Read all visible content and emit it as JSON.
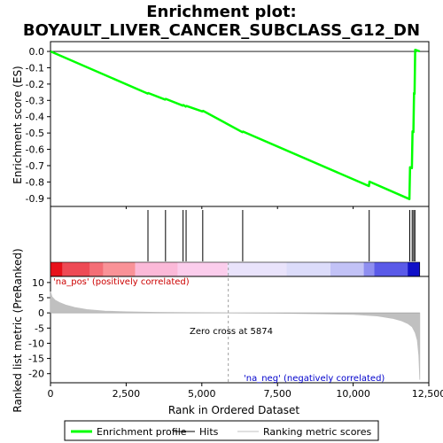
{
  "chart_data": {
    "type": "line",
    "title_line1": "Enrichment plot:",
    "title_line2": "BOYAULT_LIVER_CANCER_SUBCLASS_G12_DN",
    "es_panel": {
      "ylabel": "Enrichment score (ES)",
      "ylim": [
        -0.95,
        0.06
      ],
      "yticks": [
        0.0,
        -0.1,
        -0.2,
        -0.3,
        -0.4,
        -0.5,
        -0.6,
        -0.7,
        -0.8,
        -0.9
      ],
      "ytick_labels": [
        "0.0",
        "-0.1",
        "-0.2",
        "-0.3",
        "-0.4",
        "-0.5",
        "-0.6",
        "-0.7",
        "-0.8",
        "-0.9"
      ],
      "series": [
        {
          "name": "Enrichment profile",
          "color": "#00ff00",
          "x": [
            0,
            3210,
            3230,
            3790,
            3810,
            4370,
            4390,
            4470,
            4490,
            5020,
            5040,
            6340,
            6360,
            10520,
            10540,
            11860,
            11880,
            11940,
            11960,
            11990,
            12010,
            12030,
            12050,
            12200
          ],
          "y": [
            0.0,
            -0.258,
            -0.255,
            -0.295,
            -0.291,
            -0.332,
            -0.328,
            -0.338,
            -0.334,
            -0.368,
            -0.364,
            -0.495,
            -0.491,
            -0.825,
            -0.798,
            -0.905,
            -0.71,
            -0.715,
            -0.49,
            -0.495,
            -0.255,
            -0.26,
            0.01,
            0.0
          ]
        }
      ]
    },
    "hits": {
      "name": "Hits",
      "positions": [
        3220,
        3800,
        4380,
        4480,
        5030,
        6350,
        10530,
        11870,
        11950,
        12000,
        12040
      ]
    },
    "colorbar": {
      "segments": [
        {
          "x0": 0,
          "x1": 400,
          "color": "#e8101a"
        },
        {
          "x0": 400,
          "x1": 1300,
          "color": "#ee4a55"
        },
        {
          "x0": 1300,
          "x1": 1750,
          "color": "#f46e76"
        },
        {
          "x0": 1750,
          "x1": 2800,
          "color": "#f99297"
        },
        {
          "x0": 2800,
          "x1": 4200,
          "color": "#fbb9d8"
        },
        {
          "x0": 4200,
          "x1": 5850,
          "color": "#fbcdec"
        },
        {
          "x0": 5850,
          "x1": 7800,
          "color": "#e9e3fb"
        },
        {
          "x0": 7800,
          "x1": 9250,
          "color": "#dcdcfa"
        },
        {
          "x0": 9250,
          "x1": 10350,
          "color": "#c2c2f6"
        },
        {
          "x0": 10350,
          "x1": 10700,
          "color": "#8e8ef0"
        },
        {
          "x0": 10700,
          "x1": 11800,
          "color": "#5a5ae8"
        },
        {
          "x0": 11800,
          "x1": 12200,
          "color": "#1010c8"
        }
      ]
    },
    "ranked_panel": {
      "ylabel": "Ranked list metric (PreRanked)",
      "ylim": [
        -23,
        12
      ],
      "yticks": [
        10,
        5,
        0,
        -5,
        -10,
        -15,
        -20
      ],
      "ytick_labels": [
        "10",
        "5",
        "0",
        "-5",
        "-10",
        "-15",
        "-20"
      ],
      "series": [
        {
          "name": "Ranking metric scores",
          "color": "#c0c0c0",
          "x": [
            0,
            50,
            150,
            300,
            500,
            800,
            1200,
            1800,
            2500,
            3500,
            4500,
            5874,
            7500,
            9000,
            10000,
            10800,
            11300,
            11600,
            11800,
            11950,
            12050,
            12120,
            12170,
            12200
          ],
          "y": [
            7.0,
            5.3,
            4.2,
            3.4,
            2.6,
            1.8,
            1.1,
            0.6,
            0.35,
            0.2,
            0.1,
            0.0,
            -0.1,
            -0.3,
            -0.5,
            -1.0,
            -1.8,
            -2.6,
            -3.5,
            -4.6,
            -6.5,
            -9.0,
            -14.0,
            -22.0
          ]
        }
      ],
      "zero_cross_label": "Zero cross at 5874",
      "zero_cross": 5874,
      "pos_label": "'na_pos' (positively correlated)",
      "neg_label": "'na_neg' (negatively correlated)"
    },
    "xaxis": {
      "xlabel": "Rank in Ordered Dataset",
      "xlim": [
        0,
        12500
      ],
      "xticks": [
        0,
        2500,
        5000,
        7500,
        10000,
        12500
      ],
      "xtick_labels": [
        "0",
        "2,500",
        "5,000",
        "7,500",
        "10,000",
        "12,500"
      ]
    },
    "legend": {
      "placement": "bottom",
      "items": [
        {
          "label": "Enrichment profile",
          "color": "#00ff00",
          "style": "thick-line"
        },
        {
          "label": "Hits",
          "color": "#000000",
          "style": "line"
        },
        {
          "label": "Ranking metric scores",
          "color": "#c0c0c0",
          "style": "line"
        }
      ]
    }
  }
}
